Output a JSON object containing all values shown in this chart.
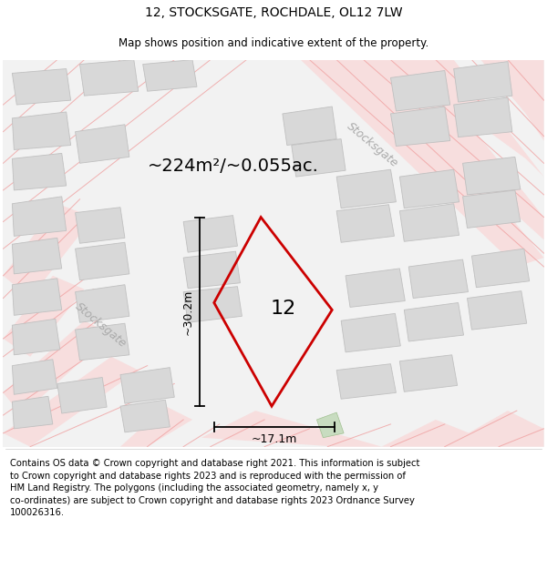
{
  "title": "12, STOCKSGATE, ROCHDALE, OL12 7LW",
  "subtitle": "Map shows position and indicative extent of the property.",
  "footer_lines": [
    "Contains OS data © Crown copyright and database right 2021. This information is subject",
    "to Crown copyright and database rights 2023 and is reproduced with the permission of",
    "HM Land Registry. The polygons (including the associated geometry, namely x, y",
    "co-ordinates) are subject to Crown copyright and database rights 2023 Ordnance Survey",
    "100026316."
  ],
  "area_label": "~224m²/~0.055ac.",
  "number_label": "12",
  "dim_height": "~30.2m",
  "dim_width": "~17.1m",
  "street_label_left": "Stocksgate",
  "street_label_top": "Stocksgate",
  "map_bg": "#f2f2f2",
  "plot_color": "#cc0000",
  "road_line_color": "#f0a0a0",
  "road_band_color": "#f7dede",
  "building_color": "#d8d8d8",
  "building_edge": "#c0c0c0",
  "green_color": "#c8dcc0",
  "green_edge": "#a0c090",
  "title_fontsize": 10,
  "subtitle_fontsize": 8.5,
  "footer_fontsize": 7.2,
  "area_fontsize": 14,
  "number_fontsize": 16,
  "dim_fontsize": 9,
  "street_fontsize": 9
}
